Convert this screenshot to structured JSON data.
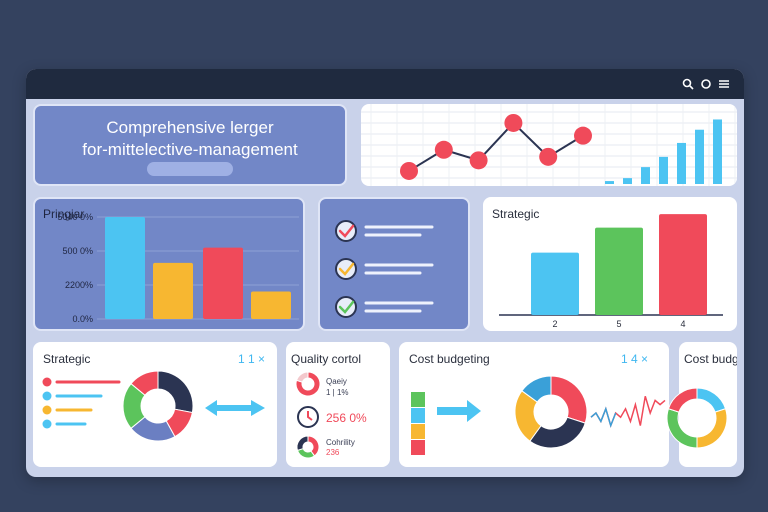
{
  "window": {
    "toolbar": {
      "icons": [
        "search-icon",
        "circle-icon",
        "menu-icon"
      ]
    }
  },
  "hero": {
    "title_line1": "Comprehensive lerger",
    "title_line2": "for-mittelective-management"
  },
  "colors": {
    "blue": "#4cc4f2",
    "orange": "#f7b731",
    "red": "#f04a5a",
    "green": "#5cc45c",
    "navy": "#2b3452",
    "slate": "#6b7fc2",
    "teal": "#3aa0d8"
  },
  "top_line_chart": {
    "chart_data": {
      "type": "line",
      "values": [
        1,
        4,
        2.5,
        7.8,
        3,
        6
      ]
    }
  },
  "top_mini_bars": {
    "chart_data": {
      "type": "bar",
      "values": [
        0.4,
        0.8,
        2.3,
        3.7,
        5.6,
        7.4,
        8.8
      ]
    }
  },
  "principal": {
    "title": "Pringiar",
    "chart_data": {
      "type": "bar",
      "y_ticks": [
        "5040 0%",
        "500 0%",
        "2200%",
        "0.0%"
      ],
      "values": [
        100,
        55,
        70,
        27
      ],
      "colors": [
        "#4cc4f2",
        "#f7b731",
        "#f04a5a",
        "#f7b731"
      ]
    }
  },
  "checklist": {
    "items": [
      {
        "icon": "arrow-check-icon",
        "color": "#f04a5a"
      },
      {
        "icon": "check-icon",
        "color": "#f7b731"
      },
      {
        "icon": "check-icon",
        "color": "#5cc45c"
      }
    ]
  },
  "strategic_top": {
    "title": "Strategic",
    "chart_data": {
      "type": "bar",
      "x_ticks": [
        "2",
        "5",
        "4"
      ],
      "values": [
        60,
        84,
        97
      ],
      "colors": [
        "#4cc4f2",
        "#5cc45c",
        "#f04a5a"
      ]
    }
  },
  "strategic_bottom": {
    "title": "Strategic",
    "badge": "1 1 ×",
    "legend": [
      {
        "color": "#f04a5a"
      },
      {
        "color": "#4cc4f2"
      },
      {
        "color": "#f7b731"
      },
      {
        "color": "#4cc4f2"
      }
    ],
    "chart_data": {
      "type": "pie",
      "values": [
        28,
        14,
        22,
        22,
        14
      ],
      "colors": [
        "#2b3452",
        "#f04a5a",
        "#6b7fc2",
        "#5cc45c",
        "#f04a5a"
      ]
    }
  },
  "quality": {
    "title": "Quality cortol",
    "row1_label": "Qaeiy",
    "row1_sub": "1 | 1%",
    "row2_value": "256 0%",
    "row3_label": "Cohrility",
    "row3_value": "236"
  },
  "cost_budgeting": {
    "title": "Cost budgeting",
    "badge": "1 4 ×",
    "stack_colors": [
      "#5cc45c",
      "#4cc4f2",
      "#f7b731",
      "#f04a5a"
    ],
    "chart_data": {
      "type": "pie",
      "values": [
        30,
        30,
        25,
        15
      ],
      "colors": [
        "#f04a5a",
        "#2b3452",
        "#f7b731",
        "#3aa0d8"
      ]
    },
    "sparkline": {
      "chart_data": {
        "type": "line",
        "values": [
          4,
          5,
          3,
          6,
          2,
          5,
          4,
          6,
          3,
          7,
          2,
          9,
          5,
          8,
          7,
          8
        ]
      }
    }
  },
  "cost_budget": {
    "title": "Cost budget",
    "chart_data": {
      "type": "pie",
      "values": [
        20,
        30,
        30,
        20
      ],
      "colors": [
        "#4cc4f2",
        "#f7b731",
        "#5cc45c",
        "#f04a5a"
      ]
    }
  }
}
